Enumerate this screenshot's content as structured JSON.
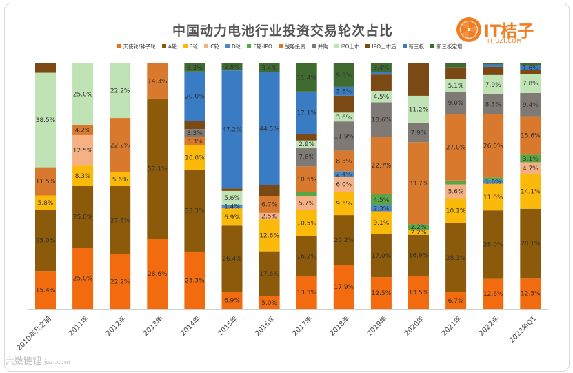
{
  "page": {
    "logo_text": "IT桔子",
    "logo_url": "ITJUZI.COM",
    "watermark": "六数链锂",
    "watermark_site": "juzi.com"
  },
  "chart_data": {
    "type": "bar",
    "stacked": true,
    "percent": true,
    "title": "中国动力电池行业投资交易轮次占比",
    "categories": [
      "2010年及之前",
      "2011年",
      "2012年",
      "2013年",
      "2014年",
      "2015年",
      "2016年",
      "2017年",
      "2018年",
      "2019年",
      "2020年",
      "2021年",
      "2022年",
      "2023年Q1"
    ],
    "series": [
      {
        "name": "天使轮/种子轮",
        "color": "#f26b0f",
        "values": [
          15.4,
          25.0,
          22.2,
          28.6,
          23.3,
          6.9,
          5.0,
          13.3,
          17.9,
          12.5,
          13.5,
          6.7,
          12.6,
          12.5
        ]
      },
      {
        "name": "A轮",
        "color": "#8b5a0b",
        "values": [
          25.0,
          25.0,
          27.8,
          57.1,
          33.3,
          26.4,
          17.6,
          16.2,
          20.2,
          17.0,
          16.9,
          28.1,
          28.0,
          28.1
        ]
      },
      {
        "name": "B轮",
        "color": "#fbb90a",
        "values": [
          5.8,
          8.3,
          5.6,
          0,
          10.0,
          6.9,
          12.6,
          10.5,
          9.5,
          9.1,
          2.2,
          10.1,
          11.0,
          14.1
        ]
      },
      {
        "name": "C轮",
        "color": "#f5b184",
        "values": [
          0,
          12.5,
          0,
          0,
          0,
          0,
          2.5,
          5.7,
          6.0,
          0,
          0,
          5.6,
          0,
          4.7
        ]
      },
      {
        "name": "D轮",
        "color": "#4b88c8",
        "values": [
          0,
          0,
          0,
          0,
          0,
          1.4,
          0,
          0,
          2.4,
          2.3,
          0,
          0,
          1.6,
          0
        ]
      },
      {
        "name": "E轮-IPO",
        "color": "#5aa546",
        "values": [
          0,
          0,
          0,
          0,
          0,
          0,
          0,
          1.5,
          0,
          4.5,
          2.2,
          1.6,
          1.0,
          3.1
        ]
      },
      {
        "name": "战略投资",
        "color": "#d9792d",
        "values": [
          11.5,
          4.2,
          22.2,
          14.3,
          3.3,
          0,
          6.7,
          10.5,
          8.3,
          22.7,
          33.7,
          27.0,
          26.0,
          15.6
        ]
      },
      {
        "name": "并购",
        "color": "#7f7a76",
        "values": [
          0,
          0,
          0,
          0,
          3.3,
          0,
          0,
          7.6,
          11.9,
          13.6,
          7.9,
          9.0,
          8.3,
          9.4
        ]
      },
      {
        "name": "IPO上市",
        "color": "#bfe3b4",
        "values": [
          38.5,
          25.0,
          22.2,
          0,
          0,
          5.6,
          0,
          2.9,
          3.6,
          4.5,
          11.2,
          5.1,
          7.9,
          7.8
        ]
      },
      {
        "name": "IPO上市后",
        "color": "#7b4a14",
        "values": [
          3.8,
          0,
          0,
          0,
          3.4,
          1.0,
          4.2,
          2.7,
          6.9,
          6.5,
          13.3,
          4.8,
          3.4,
          1.6
        ]
      },
      {
        "name": "新三板",
        "color": "#3a7cc3",
        "values": [
          0,
          0,
          0,
          0,
          20.0,
          47.2,
          44.5,
          17.1,
          3.6,
          1.0,
          0,
          0,
          1.0,
          1.6
        ]
      },
      {
        "name": "新三板定增",
        "color": "#3f6a30",
        "values": [
          0,
          0,
          0,
          0,
          3.3,
          2.8,
          3.4,
          11.4,
          9.5,
          3.4,
          0,
          1.6,
          0.4,
          1.0
        ]
      }
    ],
    "data_labels": [
      [
        [
          "天使轮/种子轮",
          "15.4%"
        ],
        [
          "A轮",
          "25.0%"
        ],
        [
          "B轮",
          "5.8%"
        ],
        [
          "战略投资",
          "11.5%"
        ],
        [
          "IPO上市",
          "38.5%"
        ]
      ],
      [
        [
          "天使轮/种子轮",
          "25.0%"
        ],
        [
          "A轮",
          "25.0%"
        ],
        [
          "B轮",
          "8.3%"
        ],
        [
          "C轮",
          "12.5%"
        ],
        [
          "战略投资",
          "4.2%"
        ],
        [
          "IPO上市",
          "25.0%"
        ]
      ],
      [
        [
          "天使轮/种子轮",
          "22.2%"
        ],
        [
          "A轮",
          "27.8%"
        ],
        [
          "B轮",
          "5.6%"
        ],
        [
          "战略投资",
          "22.2%"
        ],
        [
          "IPO上市",
          "22.2%"
        ]
      ],
      [
        [
          "天使轮/种子轮",
          "28.6%"
        ],
        [
          "A轮",
          "57.1%"
        ],
        [
          "战略投资",
          "14.3%"
        ]
      ],
      [
        [
          "天使轮/种子轮",
          "23.3%"
        ],
        [
          "A轮",
          "33.3%"
        ],
        [
          "B轮",
          "10.0%"
        ],
        [
          "战略投资",
          "3.3%"
        ],
        [
          "并购",
          "3.3%"
        ],
        [
          "新三板",
          "20.0%"
        ],
        [
          "新三板定增",
          "3.3%"
        ]
      ],
      [
        [
          "天使轮/种子轮",
          "6.9%"
        ],
        [
          "A轮",
          "26.4%"
        ],
        [
          "B轮",
          "6.9%"
        ],
        [
          "D轮",
          "1.4%"
        ],
        [
          "IPO上市",
          "5.6%"
        ],
        [
          "新三板",
          "47.2%"
        ],
        [
          "新三板定增",
          "2.8%"
        ]
      ],
      [
        [
          "天使轮/种子轮",
          "5.0%"
        ],
        [
          "A轮",
          "17.6%"
        ],
        [
          "B轮",
          "12.6%"
        ],
        [
          "C轮",
          "2.5%"
        ],
        [
          "战略投资",
          "6.7%"
        ],
        [
          "新三板",
          "44.5%"
        ],
        [
          "新三板定增",
          "3.4%"
        ]
      ],
      [
        [
          "天使轮/种子轮",
          "13.3%"
        ],
        [
          "A轮",
          "16.2%"
        ],
        [
          "B轮",
          "10.5%"
        ],
        [
          "C轮",
          "5.7%"
        ],
        [
          "战略投资",
          "10.5%"
        ],
        [
          "并购",
          "7.6%"
        ],
        [
          "IPO上市",
          "2.9%"
        ],
        [
          "新三板",
          "17.1%"
        ],
        [
          "新三板定增",
          "11.4%"
        ]
      ],
      [
        [
          "天使轮/种子轮",
          "17.9%"
        ],
        [
          "A轮",
          "20.2%"
        ],
        [
          "B轮",
          "9.5%"
        ],
        [
          "C轮",
          "6.0%"
        ],
        [
          "D轮",
          "2.4%"
        ],
        [
          "战略投资",
          "8.3%"
        ],
        [
          "并购",
          "11.9%"
        ],
        [
          "IPO上市",
          "3.6%"
        ],
        [
          "新三板",
          "3.6%"
        ],
        [
          "新三板定增",
          "9.5%"
        ]
      ],
      [
        [
          "天使轮/种子轮",
          "12.5%"
        ],
        [
          "A轮",
          "17.0%"
        ],
        [
          "B轮",
          "9.1%"
        ],
        [
          "D轮",
          "2.3%"
        ],
        [
          "E轮-IPO",
          "4.5%"
        ],
        [
          "战略投资",
          "22.7%"
        ],
        [
          "并购",
          "13.6%"
        ],
        [
          "IPO上市",
          "4.5%"
        ],
        [
          "新三板定增",
          "3.4%"
        ]
      ],
      [
        [
          "天使轮/种子轮",
          "13.5%"
        ],
        [
          "A轮",
          "16.9%"
        ],
        [
          "B轮",
          "2.2%"
        ],
        [
          "E轮-IPO",
          "2.2%"
        ],
        [
          "战略投资",
          "33.7%"
        ],
        [
          "并购",
          "7.9%"
        ],
        [
          "IPO上市",
          "11.2%"
        ]
      ],
      [
        [
          "天使轮/种子轮",
          "6.7%"
        ],
        [
          "A轮",
          "28.1%"
        ],
        [
          "B轮",
          "10.1%"
        ],
        [
          "C轮",
          "5.6%"
        ],
        [
          "战略投资",
          "27.0%"
        ],
        [
          "并购",
          "9.0%"
        ],
        [
          "IPO上市",
          "5.1%"
        ]
      ],
      [
        [
          "天使轮/种子轮",
          "12.6%"
        ],
        [
          "A轮",
          "28.0%"
        ],
        [
          "B轮",
          "11.0%"
        ],
        [
          "D轮",
          "1.6%"
        ],
        [
          "战略投资",
          "26.0%"
        ],
        [
          "并购",
          "8.3%"
        ],
        [
          "IPO上市",
          "7.9%"
        ]
      ],
      [
        [
          "天使轮/种子轮",
          "12.5%"
        ],
        [
          "A轮",
          "28.1%"
        ],
        [
          "B轮",
          "14.1%"
        ],
        [
          "C轮",
          "4.7%"
        ],
        [
          "E轮-IPO",
          "3.1%"
        ],
        [
          "战略投资",
          "15.6%"
        ],
        [
          "并购",
          "9.4%"
        ],
        [
          "IPO上市",
          "7.8%"
        ],
        [
          "新三板",
          "1.6%"
        ]
      ]
    ],
    "ylim": [
      0,
      100
    ],
    "legend_position": "top"
  }
}
